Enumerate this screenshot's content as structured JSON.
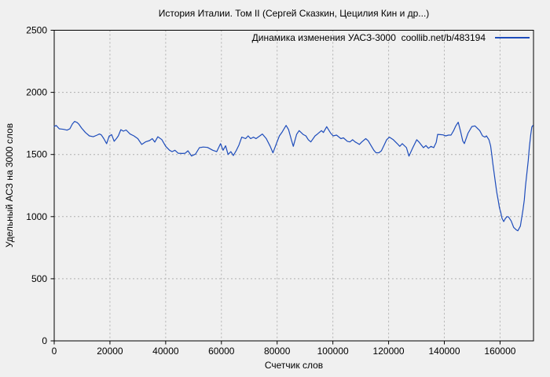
{
  "window": {
    "background": "#f0f0f0"
  },
  "chart_data": {
    "type": "line",
    "title": "История Италии. Том II (Сергей Сказкин, Цецилия Кин и др...)",
    "xlabel": "Счетчик слов",
    "ylabel": "Удельный АСЗ на 3000 слов",
    "legend": {
      "label": "Динамика изменения УАСЗ-3000  coollib.net/b/483194",
      "position": "top-right"
    },
    "xlim": [
      0,
      172000
    ],
    "ylim": [
      0,
      2500
    ],
    "xticks": [
      0,
      20000,
      40000,
      60000,
      80000,
      100000,
      120000,
      140000,
      160000
    ],
    "yticks": [
      0,
      500,
      1000,
      1500,
      2000,
      2500
    ],
    "grid": true,
    "colors": {
      "background": "#f0f0f0",
      "line": "#1d4cbb",
      "grid": "#b0b0b0",
      "border": "#000000",
      "text": "#000000"
    },
    "series": [
      {
        "name": "УАСЗ-3000",
        "color": "#1d4cbb",
        "points": [
          [
            0,
            1725
          ],
          [
            700,
            1734
          ],
          [
            1800,
            1707
          ],
          [
            2600,
            1705
          ],
          [
            3400,
            1702
          ],
          [
            4600,
            1696
          ],
          [
            5600,
            1707
          ],
          [
            6500,
            1745
          ],
          [
            7300,
            1766
          ],
          [
            8200,
            1758
          ],
          [
            8800,
            1745
          ],
          [
            9800,
            1713
          ],
          [
            11200,
            1677
          ],
          [
            12600,
            1650
          ],
          [
            14000,
            1643
          ],
          [
            15400,
            1656
          ],
          [
            16200,
            1665
          ],
          [
            16900,
            1658
          ],
          [
            17800,
            1628
          ],
          [
            18800,
            1587
          ],
          [
            19700,
            1648
          ],
          [
            20600,
            1660
          ],
          [
            21500,
            1606
          ],
          [
            22400,
            1630
          ],
          [
            23000,
            1650
          ],
          [
            23900,
            1700
          ],
          [
            24800,
            1688
          ],
          [
            25800,
            1697
          ],
          [
            27200,
            1665
          ],
          [
            28600,
            1650
          ],
          [
            30000,
            1628
          ],
          [
            31400,
            1581
          ],
          [
            32800,
            1602
          ],
          [
            34200,
            1612
          ],
          [
            35200,
            1628
          ],
          [
            36100,
            1600
          ],
          [
            37200,
            1643
          ],
          [
            38600,
            1620
          ],
          [
            40000,
            1566
          ],
          [
            41400,
            1534
          ],
          [
            42300,
            1523
          ],
          [
            43300,
            1534
          ],
          [
            44500,
            1510
          ],
          [
            46000,
            1508
          ],
          [
            47000,
            1510
          ],
          [
            48000,
            1530
          ],
          [
            49300,
            1488
          ],
          [
            50700,
            1503
          ],
          [
            52100,
            1555
          ],
          [
            53500,
            1560
          ],
          [
            55000,
            1557
          ],
          [
            56900,
            1534
          ],
          [
            58300,
            1523
          ],
          [
            59700,
            1587
          ],
          [
            60600,
            1534
          ],
          [
            61500,
            1570
          ],
          [
            62400,
            1500
          ],
          [
            63400,
            1523
          ],
          [
            64300,
            1492
          ],
          [
            65400,
            1534
          ],
          [
            66300,
            1576
          ],
          [
            67300,
            1640
          ],
          [
            68700,
            1628
          ],
          [
            69600,
            1650
          ],
          [
            70500,
            1628
          ],
          [
            71500,
            1640
          ],
          [
            72400,
            1628
          ],
          [
            73800,
            1650
          ],
          [
            74700,
            1665
          ],
          [
            76100,
            1628
          ],
          [
            77500,
            1566
          ],
          [
            78500,
            1513
          ],
          [
            79900,
            1598
          ],
          [
            80800,
            1650
          ],
          [
            81800,
            1681
          ],
          [
            83200,
            1734
          ],
          [
            84100,
            1700
          ],
          [
            85100,
            1619
          ],
          [
            85800,
            1566
          ],
          [
            87000,
            1662
          ],
          [
            87900,
            1692
          ],
          [
            89300,
            1662
          ],
          [
            90300,
            1650
          ],
          [
            91200,
            1619
          ],
          [
            92100,
            1601
          ],
          [
            93600,
            1650
          ],
          [
            94500,
            1665
          ],
          [
            95900,
            1692
          ],
          [
            96600,
            1677
          ],
          [
            97800,
            1724
          ],
          [
            99200,
            1672
          ],
          [
            100100,
            1650
          ],
          [
            101300,
            1656
          ],
          [
            102900,
            1628
          ],
          [
            103800,
            1634
          ],
          [
            105200,
            1606
          ],
          [
            106100,
            1601
          ],
          [
            107100,
            1619
          ],
          [
            108000,
            1601
          ],
          [
            108900,
            1590
          ],
          [
            109500,
            1581
          ],
          [
            110400,
            1601
          ],
          [
            111800,
            1628
          ],
          [
            112700,
            1610
          ],
          [
            113300,
            1587
          ],
          [
            114700,
            1534
          ],
          [
            115500,
            1514
          ],
          [
            116500,
            1514
          ],
          [
            117400,
            1530
          ],
          [
            118400,
            1576
          ],
          [
            119300,
            1619
          ],
          [
            120300,
            1640
          ],
          [
            121700,
            1619
          ],
          [
            123100,
            1587
          ],
          [
            124000,
            1566
          ],
          [
            124900,
            1587
          ],
          [
            126400,
            1555
          ],
          [
            127300,
            1487
          ],
          [
            128700,
            1555
          ],
          [
            130100,
            1619
          ],
          [
            131000,
            1598
          ],
          [
            132500,
            1555
          ],
          [
            133400,
            1572
          ],
          [
            134300,
            1550
          ],
          [
            135200,
            1566
          ],
          [
            136200,
            1555
          ],
          [
            137100,
            1598
          ],
          [
            137600,
            1662
          ],
          [
            138500,
            1660
          ],
          [
            139500,
            1658
          ],
          [
            140500,
            1650
          ],
          [
            141500,
            1656
          ],
          [
            142400,
            1656
          ],
          [
            143300,
            1690
          ],
          [
            144100,
            1730
          ],
          [
            145000,
            1760
          ],
          [
            145900,
            1680
          ],
          [
            146600,
            1610
          ],
          [
            147200,
            1588
          ],
          [
            148500,
            1672
          ],
          [
            149900,
            1725
          ],
          [
            151000,
            1730
          ],
          [
            152700,
            1692
          ],
          [
            153700,
            1650
          ],
          [
            154600,
            1640
          ],
          [
            155100,
            1650
          ],
          [
            156000,
            1619
          ],
          [
            156600,
            1570
          ],
          [
            157000,
            1503
          ],
          [
            157400,
            1429
          ],
          [
            157900,
            1345
          ],
          [
            158400,
            1261
          ],
          [
            158800,
            1197
          ],
          [
            159300,
            1134
          ],
          [
            159800,
            1071
          ],
          [
            160300,
            1029
          ],
          [
            160700,
            987
          ],
          [
            161300,
            960
          ],
          [
            161900,
            985
          ],
          [
            162500,
            1000
          ],
          [
            163000,
            998
          ],
          [
            164000,
            965
          ],
          [
            164900,
            913
          ],
          [
            165900,
            892
          ],
          [
            166400,
            886
          ],
          [
            167300,
            924
          ],
          [
            168200,
            1050
          ],
          [
            168700,
            1134
          ],
          [
            169100,
            1240
          ],
          [
            169600,
            1345
          ],
          [
            170100,
            1450
          ],
          [
            170500,
            1556
          ],
          [
            171000,
            1660
          ],
          [
            171400,
            1722
          ],
          [
            171800,
            1734
          ]
        ]
      }
    ]
  }
}
